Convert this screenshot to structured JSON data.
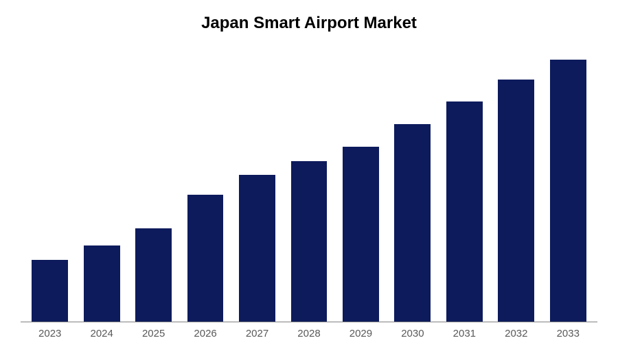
{
  "chart": {
    "type": "bar",
    "title": "Japan Smart Airport Market",
    "title_fontsize": 24,
    "title_fontweight": "bold",
    "title_color": "#000000",
    "categories": [
      "2023",
      "2024",
      "2025",
      "2026",
      "2027",
      "2028",
      "2029",
      "2030",
      "2031",
      "2032",
      "2033"
    ],
    "values": [
      22,
      27,
      33,
      45,
      52,
      57,
      62,
      70,
      78,
      86,
      93
    ],
    "bar_color": "#0d1b5c",
    "background_color": "#ffffff",
    "axis_line_color": "#808080",
    "xlabel_color": "#595959",
    "xlabel_fontsize": 15,
    "ylim": [
      0,
      100
    ],
    "bar_width": 0.7
  }
}
